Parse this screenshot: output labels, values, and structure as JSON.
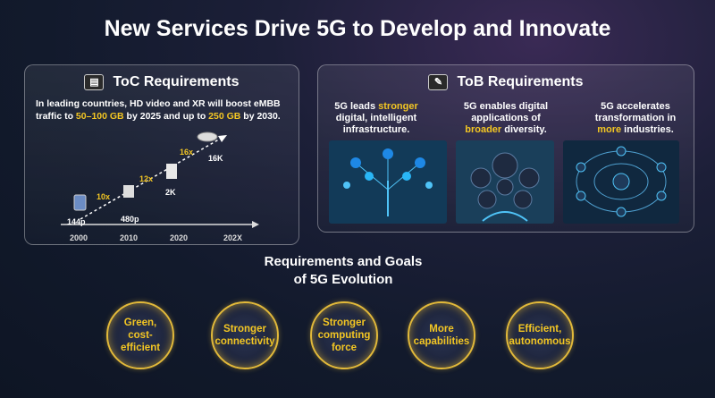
{
  "title": "New Services Drive 5G to Develop and Innovate",
  "toc": {
    "heading": "ToC Requirements",
    "text_pre": "In leading countries, HD video and XR will boost eMBB traffic to ",
    "text_hl1": "50–100 GB",
    "text_mid": " by 2025 and up to ",
    "text_hl2": "250 GB",
    "text_post": " by 2030.",
    "resolutions": [
      "144p",
      "480p",
      "2K",
      "16K"
    ],
    "multipliers": [
      "10x",
      "12x",
      "16x"
    ],
    "years": [
      "2000",
      "2010",
      "2020",
      "202X"
    ]
  },
  "tob": {
    "heading": "ToB Requirements",
    "col1": {
      "pre": "5G leads ",
      "hl": "stronger",
      "post": " digital, intelligent infrastructure."
    },
    "col2": {
      "pre": "5G enables digital applications of ",
      "hl": "broader",
      "post": " diversity."
    },
    "col3": {
      "pre": "5G accelerates transformation in ",
      "hl": "more",
      "post": " industries."
    }
  },
  "goals": {
    "title_line1": "Requirements and Goals",
    "title_line2": "of 5G Evolution",
    "items": [
      "Green, cost-efficient",
      "Stronger connectivity",
      "Stronger computing force",
      "More capabilities",
      "Efficient, autonomous"
    ]
  },
  "colors": {
    "accent": "#f3c623",
    "ring": "#e2b93a"
  }
}
